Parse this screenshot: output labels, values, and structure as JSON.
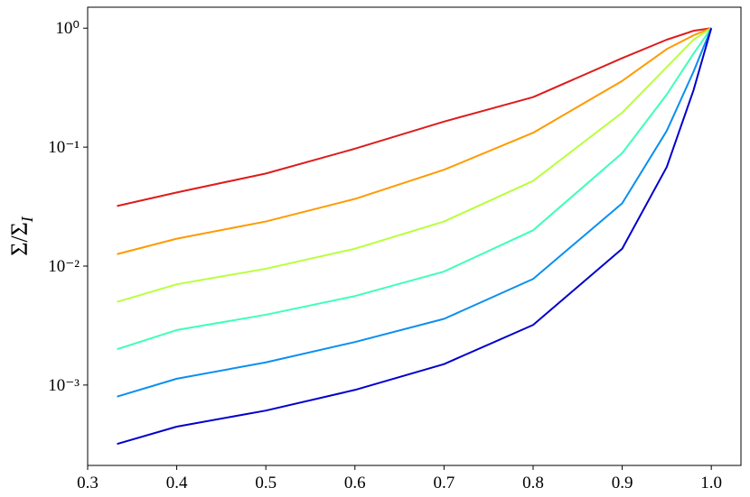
{
  "chart_data": {
    "type": "line",
    "ylabel": {
      "main": "Σ/Σ",
      "sub": "I"
    },
    "x": [
      0.333,
      0.4,
      0.5,
      0.6,
      0.7,
      0.8,
      0.9,
      0.95,
      0.98,
      1.0
    ],
    "series": [
      {
        "color": "#dd1c1c",
        "values": [
          0.032,
          0.0416,
          0.06,
          0.097,
          0.164,
          0.263,
          0.56,
          0.8,
          0.95,
          1.0
        ]
      },
      {
        "color": "#ff9a00",
        "values": [
          0.0126,
          0.017,
          0.0237,
          0.0367,
          0.0645,
          0.132,
          0.36,
          0.667,
          0.87,
          1.0
        ]
      },
      {
        "color": "#b8ff3d",
        "values": [
          0.005,
          0.00703,
          0.0095,
          0.014,
          0.0237,
          0.052,
          0.195,
          0.47,
          0.8,
          1.0
        ]
      },
      {
        "color": "#3dffb8",
        "values": [
          0.002,
          0.0029,
          0.0039,
          0.0056,
          0.009,
          0.02,
          0.089,
          0.277,
          0.61,
          1.0
        ]
      },
      {
        "color": "#0a8ff0",
        "values": [
          0.0008,
          0.00113,
          0.00155,
          0.0023,
          0.0036,
          0.0078,
          0.0337,
          0.137,
          0.43,
          1.0
        ]
      },
      {
        "color": "#0000cd",
        "values": [
          0.00032,
          0.000447,
          0.00061,
          0.00091,
          0.0015,
          0.0032,
          0.014,
          0.068,
          0.3,
          1.0
        ]
      }
    ],
    "xlim": [
      0.3,
      1.0333
    ],
    "xticks": [
      0.3,
      0.4,
      0.5,
      0.6,
      0.7,
      0.8,
      0.9,
      {
        "value": 1,
        "label": "1.0"
      }
    ],
    "ylim": [
      0.000211,
      1.5
    ],
    "yticks": [
      {
        "value": 1,
        "label": "10⁰"
      },
      {
        "value": 0.1,
        "label": "10⁻¹"
      },
      {
        "value": 0.01,
        "label": "10⁻²"
      },
      {
        "value": 0.001,
        "label": "10⁻³"
      }
    ],
    "log_y": true,
    "grid": false
  }
}
